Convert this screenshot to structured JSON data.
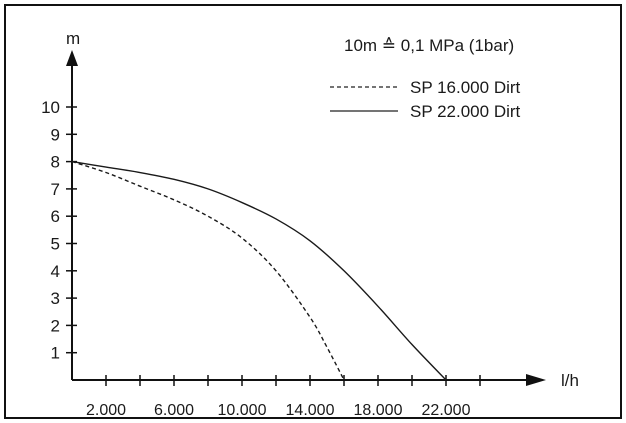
{
  "chart_data": {
    "type": "line",
    "title": "",
    "note": "10m ≙ 0,1 MPa (1bar)",
    "xlabel": "l/h",
    "ylabel": "m",
    "xlim": [
      0,
      26000
    ],
    "ylim": [
      0,
      11
    ],
    "xtick_values": [
      2000,
      4000,
      6000,
      8000,
      10000,
      12000,
      14000,
      16000,
      18000,
      20000,
      22000,
      24000
    ],
    "xtick_labels": [
      {
        "value": 2000,
        "label": "2.000"
      },
      {
        "value": 6000,
        "label": "6.000"
      },
      {
        "value": 10000,
        "label": "10.000"
      },
      {
        "value": 14000,
        "label": "14.000"
      },
      {
        "value": 18000,
        "label": "18.000"
      },
      {
        "value": 22000,
        "label": "22.000"
      }
    ],
    "ytick_values": [
      1,
      2,
      3,
      4,
      5,
      6,
      7,
      8,
      9,
      10
    ],
    "ytick_labels": [
      "1",
      "2",
      "3",
      "4",
      "5",
      "6",
      "7",
      "8",
      "9",
      "10"
    ],
    "grid": false,
    "legend_position": "top-right",
    "series": [
      {
        "name": "SP 16.000 Dirt",
        "style": "dashed",
        "x": [
          0,
          2000,
          4000,
          6000,
          8000,
          10000,
          12000,
          14000,
          15000,
          16000
        ],
        "y": [
          8.0,
          7.6,
          7.1,
          6.6,
          6.0,
          5.2,
          4.0,
          2.3,
          1.2,
          0
        ]
      },
      {
        "name": "SP 22.000 Dirt",
        "style": "solid",
        "x": [
          0,
          2000,
          4000,
          6000,
          8000,
          10000,
          12000,
          14000,
          16000,
          18000,
          20000,
          22000
        ],
        "y": [
          8.0,
          7.8,
          7.6,
          7.35,
          7.0,
          6.5,
          5.9,
          5.1,
          4.0,
          2.7,
          1.3,
          0
        ]
      }
    ]
  }
}
